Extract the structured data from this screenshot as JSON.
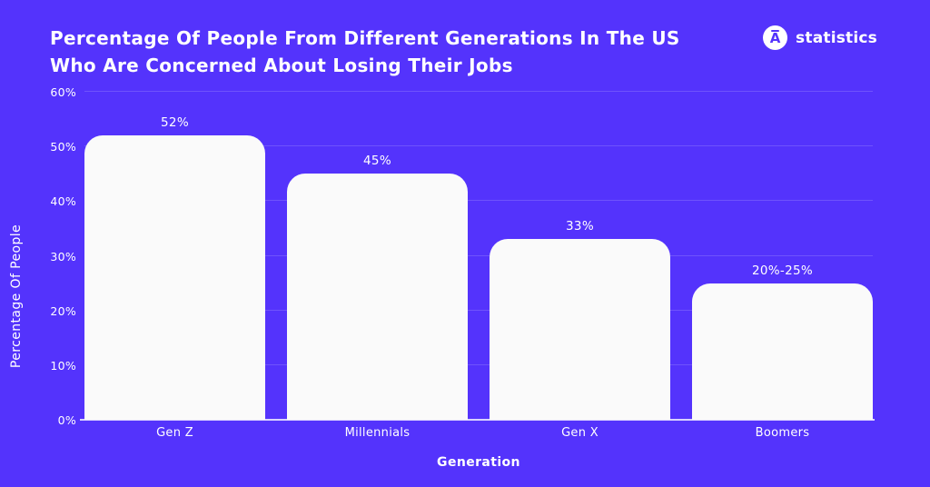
{
  "page": {
    "background_color": "#5433FC"
  },
  "header": {
    "title_line1": "Percentage Of People From Different Generations In The US",
    "title_line2": "Who Are Concerned About Losing Their Jobs",
    "brand": {
      "logo_letter": "A",
      "name": "statistics"
    }
  },
  "chart_data": {
    "type": "bar",
    "title": "Percentage Of People From Different Generations In The US Who Are Concerned About Losing Their Jobs",
    "categories": [
      "Gen Z",
      "Millennials",
      "Gen X",
      "Boomers"
    ],
    "values": [
      52,
      45,
      33,
      25
    ],
    "value_labels": [
      "52%",
      "45%",
      "33%",
      "20%-25%"
    ],
    "xlabel": "Generation",
    "ylabel": "Percentage Of People",
    "ylim": [
      0,
      60
    ],
    "ytick_step": 10,
    "yticks": [
      "0%",
      "10%",
      "20%",
      "30%",
      "40%",
      "50%",
      "60%"
    ],
    "grid": true,
    "legend": "none",
    "bar_color": "#FAFAFA",
    "background_color": "#5433FC",
    "text_color": "#FFFFFF",
    "gridline_color": "rgba(255,255,255,0.16)"
  }
}
